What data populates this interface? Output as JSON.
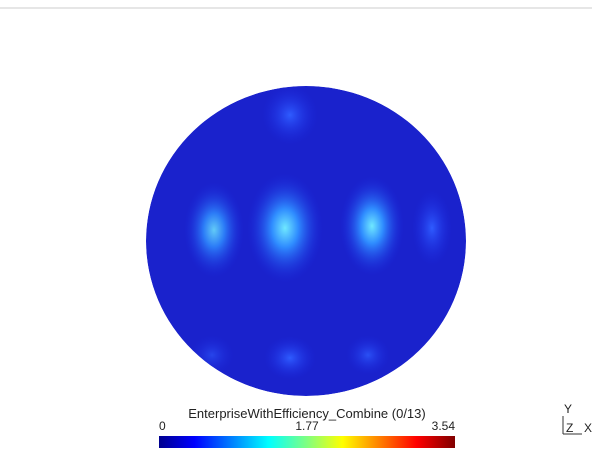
{
  "colorbar": {
    "title": "EnterpriseWithEfficiency_Combine (0/13)",
    "ticks": [
      0,
      1.77,
      3.54
    ]
  },
  "axes": {
    "y": "Y",
    "z": "Z",
    "x": "X"
  }
}
